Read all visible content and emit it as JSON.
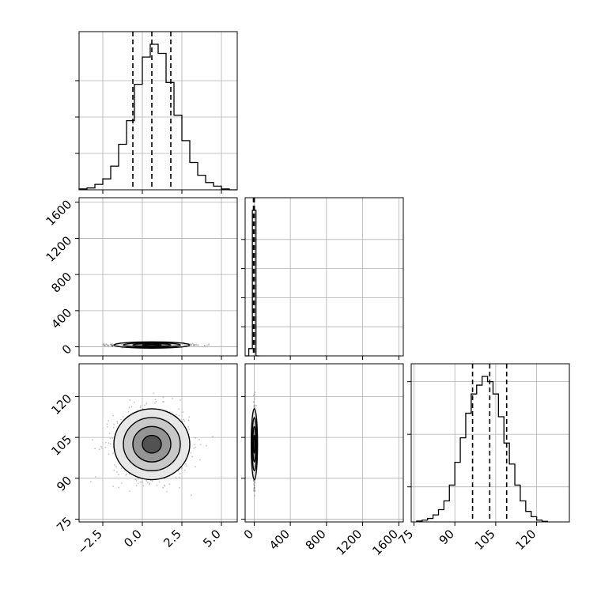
{
  "chart_data": {
    "type": "corner",
    "parameters": 3,
    "grid": true,
    "quantile_lines": "dashed",
    "colors": {
      "line": "#000000",
      "grid": "#b0b0b0",
      "scatter": "#555555"
    },
    "diagonal": [
      {
        "type": "histogram",
        "param_index": 0,
        "range": [
          -4.0,
          6.0
        ],
        "quantiles": [
          -0.6,
          0.6,
          1.8
        ],
        "bins": [
          [
            -4.0,
            0.5
          ],
          [
            -3.5,
            1
          ],
          [
            -3.0,
            3
          ],
          [
            -2.5,
            6
          ],
          [
            -2.0,
            13
          ],
          [
            -1.5,
            25
          ],
          [
            -1.0,
            38
          ],
          [
            -0.5,
            58
          ],
          [
            0.0,
            73
          ],
          [
            0.5,
            80
          ],
          [
            1.0,
            75
          ],
          [
            1.5,
            59
          ],
          [
            2.0,
            41
          ],
          [
            2.5,
            27
          ],
          [
            3.0,
            15
          ],
          [
            3.5,
            8
          ],
          [
            4.0,
            4
          ],
          [
            4.5,
            2
          ],
          [
            5.0,
            0.5
          ],
          [
            5.5,
            0
          ]
        ],
        "ytick_values": [
          20,
          40,
          60
        ]
      },
      {
        "type": "histogram",
        "param_index": 1,
        "range": [
          -100,
          1650
        ],
        "quantiles": [
          -8,
          -3,
          2
        ],
        "bins": [
          [
            -100,
            0
          ],
          [
            -60,
            5
          ],
          [
            -20,
            100
          ],
          [
            20,
            0
          ]
        ],
        "ytick_values": [
          20,
          40,
          60,
          80
        ]
      },
      {
        "type": "histogram",
        "param_index": 2,
        "range": [
          74,
          132
        ],
        "quantiles": [
          96.5,
          102.8,
          109.0
        ],
        "bins": [
          [
            76,
            0.5
          ],
          [
            78,
            1
          ],
          [
            80,
            2
          ],
          [
            82,
            4
          ],
          [
            84,
            7
          ],
          [
            86,
            12
          ],
          [
            88,
            21
          ],
          [
            90,
            34
          ],
          [
            92,
            48
          ],
          [
            94,
            62
          ],
          [
            96,
            73
          ],
          [
            98,
            78
          ],
          [
            100,
            83
          ],
          [
            102,
            80
          ],
          [
            104,
            73
          ],
          [
            106,
            60
          ],
          [
            108,
            45
          ],
          [
            110,
            33
          ],
          [
            112,
            21
          ],
          [
            114,
            12
          ],
          [
            116,
            6
          ],
          [
            118,
            3
          ],
          [
            120,
            1
          ],
          [
            122,
            0.3
          ]
        ],
        "ytick_values": [
          20,
          50,
          80
        ]
      }
    ],
    "off_diagonal": [
      {
        "type": "scatter-contour",
        "x_param": 0,
        "y_param": 1,
        "xlim": [
          -4.0,
          6.0
        ],
        "ylim": [
          -100,
          1650
        ],
        "center": [
          0.6,
          20
        ],
        "spread": [
          1.2,
          8
        ],
        "levels": [
          0.5,
          1.0,
          1.5,
          2.0
        ]
      },
      {
        "type": "scatter-contour",
        "x_param": 0,
        "y_param": 2,
        "xlim": [
          -4.0,
          6.0
        ],
        "ylim": [
          74,
          132
        ],
        "center": [
          0.6,
          102.5
        ],
        "spread": [
          1.2,
          6.5
        ],
        "levels": [
          0.5,
          1.0,
          1.5,
          2.0
        ]
      },
      {
        "type": "scatter-contour",
        "x_param": 1,
        "y_param": 2,
        "xlim": [
          -100,
          1650
        ],
        "ylim": [
          74,
          132
        ],
        "center": [
          2,
          102.5
        ],
        "spread": [
          6,
          6.5
        ],
        "levels": [
          0.5,
          1.0,
          1.5,
          2.0
        ]
      }
    ],
    "axes": {
      "x_ticks": [
        [
          "−2.5",
          "0.0",
          "2.5",
          "5.0"
        ],
        [
          "0",
          "400",
          "800",
          "1200",
          "1600"
        ],
        [
          "75",
          "90",
          "105",
          "120"
        ]
      ],
      "x_tick_values": [
        [
          -2.5,
          0.0,
          2.5,
          5.0
        ],
        [
          0,
          400,
          800,
          1200,
          1600
        ],
        [
          75,
          90,
          105,
          120
        ]
      ],
      "y_ticks": [
        [],
        [
          "0",
          "400",
          "800",
          "1200",
          "1600"
        ],
        [
          "75",
          "90",
          "105",
          "120"
        ]
      ],
      "y_tick_values": [
        [],
        [
          0,
          400,
          800,
          1200,
          1600
        ],
        [
          75,
          90,
          105,
          120
        ]
      ]
    }
  }
}
